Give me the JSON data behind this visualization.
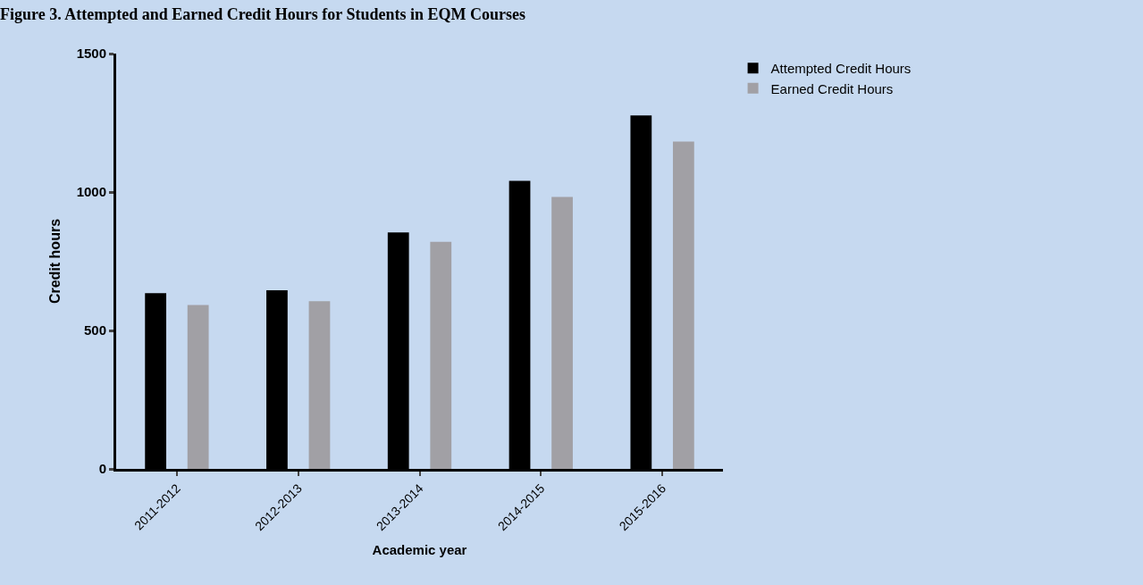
{
  "chart_data": {
    "type": "bar",
    "title": "Figure 3. Attempted and Earned Credit Hours for Students in EQM Courses",
    "xlabel": "Academic year",
    "ylabel": "Credit hours",
    "categories": [
      "2011-2012",
      "2012-2013",
      "2013-2014",
      "2014-2015",
      "2015-2016"
    ],
    "series": [
      {
        "name": "Attempted Credit Hours",
        "color": "#000000",
        "values": [
          635,
          645,
          854,
          1040,
          1277
        ]
      },
      {
        "name": "Earned Credit Hours",
        "color": "#a1a0a5",
        "values": [
          592,
          606,
          820,
          982,
          1182
        ]
      }
    ],
    "ylim": [
      0,
      1500
    ],
    "yticks": [
      0,
      500,
      1000,
      1500
    ],
    "grid": false,
    "legend": "top right"
  }
}
